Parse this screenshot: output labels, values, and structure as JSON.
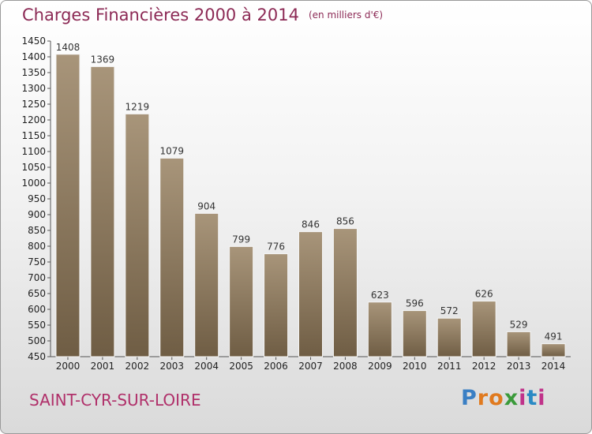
{
  "header": {
    "title": "Charges Financières 2000 à 2014",
    "unit": "(en milliers d'€)"
  },
  "footer": {
    "city": "SAINT-CYR-SUR-LOIRE",
    "logo_letters": [
      "P",
      "r",
      "o",
      "x",
      "i",
      "t",
      "i"
    ],
    "logo_colors": [
      "#3a7fc4",
      "#e07a1f",
      "#e07a1f",
      "#3a9a3a",
      "#c0328a",
      "#2a8ac4",
      "#c0328a"
    ]
  },
  "chart_data": {
    "type": "bar",
    "categories": [
      "2000",
      "2001",
      "2002",
      "2003",
      "2004",
      "2005",
      "2006",
      "2007",
      "2008",
      "2009",
      "2010",
      "2011",
      "2012",
      "2013",
      "2014"
    ],
    "values": [
      1408,
      1369,
      1219,
      1079,
      904,
      799,
      776,
      846,
      856,
      623,
      596,
      572,
      626,
      529,
      491
    ],
    "ylim": [
      450,
      1450
    ],
    "yticks": [
      450,
      500,
      550,
      600,
      650,
      700,
      750,
      800,
      850,
      900,
      950,
      1000,
      1050,
      1100,
      1150,
      1200,
      1250,
      1300,
      1350,
      1400,
      1450
    ],
    "grid": false,
    "bar_color_top": "#a8957a",
    "bar_color_bottom": "#6f5d44"
  }
}
